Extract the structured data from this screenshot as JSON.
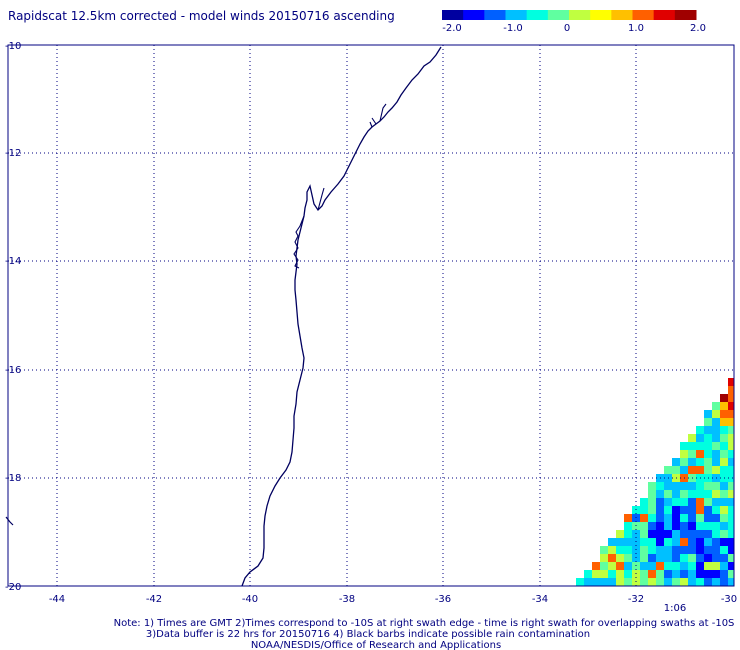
{
  "title": "Rapidscat 12.5km corrected - model winds 20150716 ascending",
  "colorbar": {
    "ticks": [
      "-2.0",
      "-1.0",
      "0",
      "1.0",
      "2.0"
    ],
    "colors": [
      "#0000a0",
      "#0000ff",
      "#0060ff",
      "#00c0ff",
      "#00ffe0",
      "#60ffa0",
      "#c0ff40",
      "#ffff00",
      "#ffc000",
      "#ff6000",
      "#e00000",
      "#a00000"
    ]
  },
  "lat_labels": [
    "-10",
    "-12",
    "-14",
    "-16",
    "-18",
    "-20"
  ],
  "lon_labels": [
    "-44",
    "-42",
    "-40",
    "-38",
    "-36",
    "-34",
    "-32",
    "-30"
  ],
  "time_label": "1:06",
  "notes": {
    "line1": "Note: 1) Times are GMT 2)Times correspond to -10S at right swath edge - time is right swath for overlapping swaths at -10S",
    "line2": "3)Data buffer is 22 hrs for 20150716 4) Black barbs indicate possible rain contamination",
    "line3": "NOAA/NESDIS/Office of Research and Applications"
  },
  "map": {
    "lon_range": [
      -45,
      -30
    ],
    "lat_range": [
      -20,
      -10
    ],
    "coast_color": "#000060",
    "time_color": "#a04000"
  }
}
